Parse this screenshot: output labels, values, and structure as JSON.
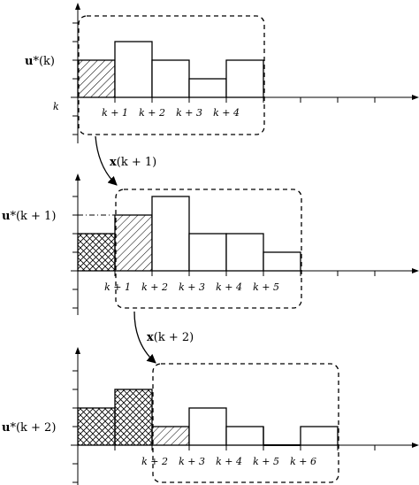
{
  "panels": [
    {
      "ylabel": "u*(k)",
      "ylabel_bold": "u",
      "ylabel_rest": "*(k)",
      "axis_label": "k",
      "ticks": [
        "k + 1",
        "k + 2",
        "k + 3",
        "k + 4"
      ]
    },
    {
      "ylabel_bold": "u",
      "ylabel_rest": "*(k + 1)",
      "ticks": [
        "k + 1",
        "k + 2",
        "k + 3",
        "k + 4",
        "k + 5"
      ]
    },
    {
      "ylabel_bold": "u",
      "ylabel_rest": "*(k + 2)",
      "ticks": [
        "k + 2",
        "k + 3",
        "k + 4",
        "k + 5",
        "k + 6"
      ]
    }
  ],
  "transitions": [
    {
      "bold": "x",
      "rest": "(k + 1)"
    },
    {
      "bold": "x",
      "rest": "(k + 2)"
    }
  ]
}
